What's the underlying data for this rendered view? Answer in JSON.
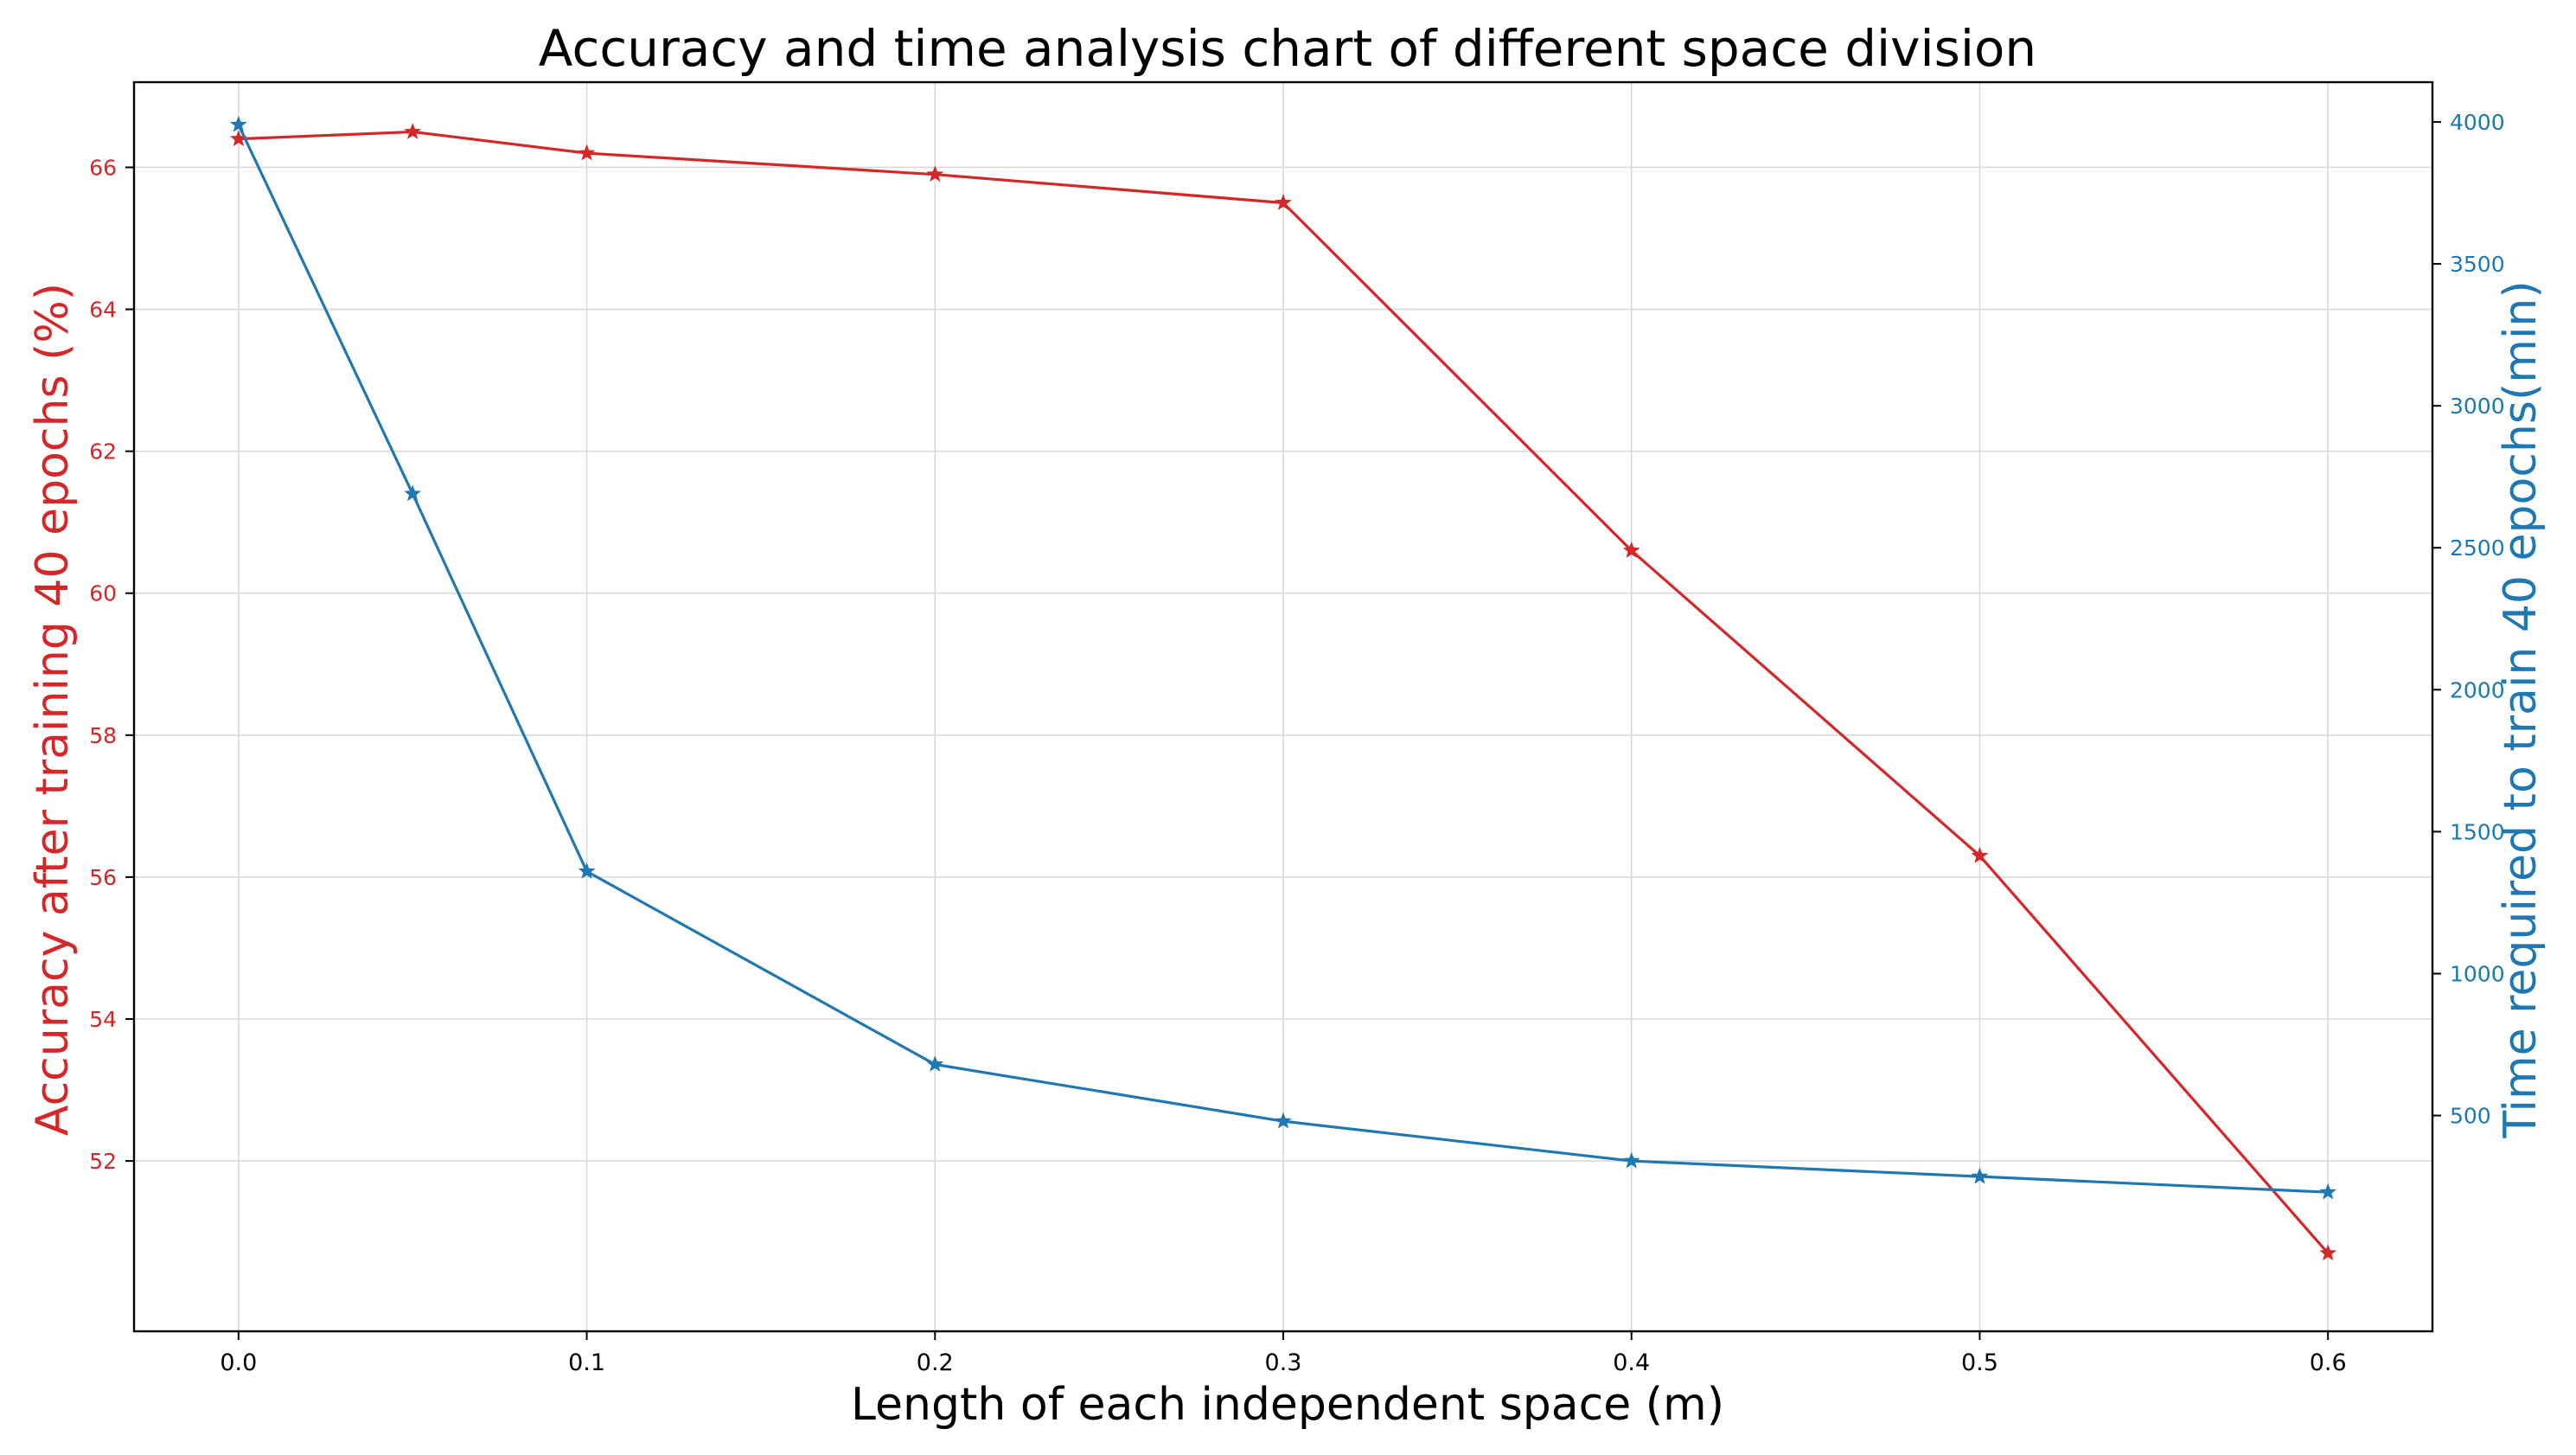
{
  "chart_data": {
    "type": "line",
    "title": "Accuracy and time analysis chart of different space division",
    "xlabel": "Length of each independent space (m)",
    "ylabel_left": "Accuracy after training 40 epochs (%)",
    "ylabel_right": "Time required to train 40 epochs(min)",
    "x": [
      0.0,
      0.05,
      0.1,
      0.2,
      0.3,
      0.4,
      0.5,
      0.6
    ],
    "xlim": [
      -0.03,
      0.63
    ],
    "ylim_left": [
      49.6,
      67.2
    ],
    "ylim_right": [
      -260,
      4140
    ],
    "x_ticks": [
      "0.0",
      "0.1",
      "0.2",
      "0.3",
      "0.4",
      "0.5",
      "0.6"
    ],
    "y_left_ticks": [
      "52",
      "54",
      "56",
      "58",
      "60",
      "62",
      "64",
      "66"
    ],
    "y_right_ticks": [
      "500",
      "1000",
      "1500",
      "2000",
      "2500",
      "3000",
      "3500",
      "4000"
    ],
    "grid": true,
    "series": [
      {
        "axis": "left",
        "color": "#d62728",
        "marker": "star",
        "values": [
          66.4,
          66.5,
          66.2,
          65.9,
          65.5,
          60.6,
          56.3,
          50.7
        ]
      },
      {
        "axis": "right",
        "color": "#1f77b4",
        "marker": "star",
        "values": [
          3990,
          2690,
          1360,
          680,
          480,
          340,
          285,
          230
        ]
      }
    ]
  }
}
